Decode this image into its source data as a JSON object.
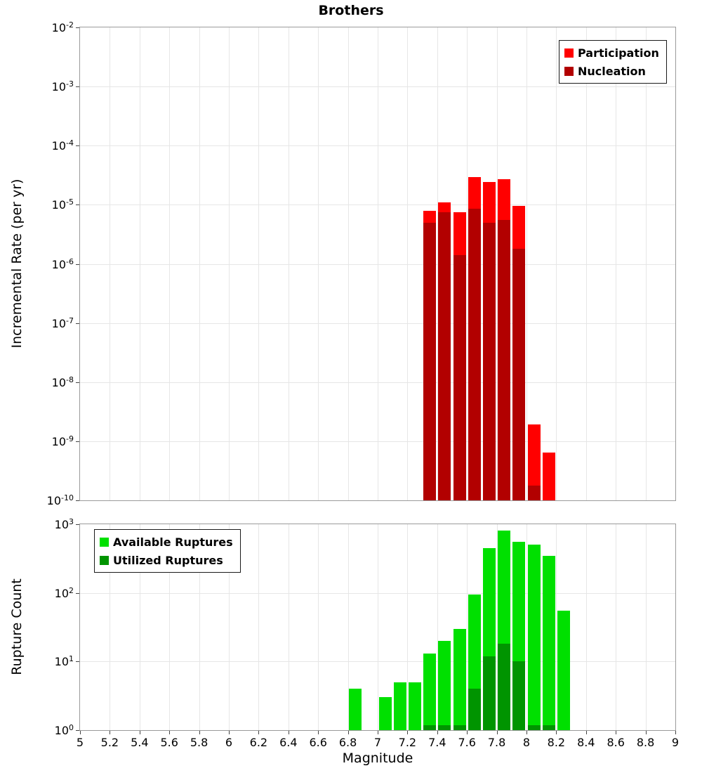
{
  "title": "Brothers",
  "chart_data": [
    {
      "type": "bar",
      "panel": "incremental-rate",
      "title": "Brothers",
      "ylabel": "Incremental Rate (per yr)",
      "yscale": "log",
      "xlim": [
        5,
        9
      ],
      "ylim": [
        1e-10,
        0.01
      ],
      "bin_width": 0.1,
      "grid": true,
      "legend_position": "top-right",
      "yticks": [
        "10^-2",
        "10^-3",
        "10^-4",
        "10^-5",
        "10^-6",
        "10^-7",
        "10^-8",
        "10^-9",
        "10^-10"
      ],
      "series": [
        {
          "name": "Participation",
          "color": "#ff0000",
          "x": [
            7.35,
            7.45,
            7.55,
            7.65,
            7.75,
            7.85,
            7.95,
            8.05,
            8.15
          ],
          "values": [
            8e-06,
            1.1e-05,
            7.5e-06,
            2.9e-05,
            2.4e-05,
            2.7e-05,
            9.5e-06,
            1.9e-09,
            6.5e-10
          ]
        },
        {
          "name": "Nucleation",
          "color": "#b20000",
          "x": [
            7.35,
            7.45,
            7.55,
            7.65,
            7.75,
            7.85,
            7.95,
            8.05,
            8.15
          ],
          "values": [
            5e-06,
            7.5e-06,
            1.4e-06,
            8.5e-06,
            5e-06,
            5.5e-06,
            1.8e-06,
            1.8e-10,
            0
          ]
        }
      ]
    },
    {
      "type": "bar",
      "panel": "rupture-count",
      "ylabel": "Rupture Count",
      "xlabel": "Magnitude",
      "yscale": "log",
      "xlim": [
        5,
        9
      ],
      "ylim": [
        1,
        1000
      ],
      "bin_width": 0.1,
      "grid": true,
      "legend_position": "top-left",
      "yticks": [
        "10^3",
        "10^2",
        "10^1",
        "10^0"
      ],
      "xticks": [
        "5",
        "5.2",
        "5.4",
        "5.6",
        "5.8",
        "6",
        "6.2",
        "6.4",
        "6.6",
        "6.8",
        "7",
        "7.2",
        "7.4",
        "7.6",
        "7.8",
        "8",
        "8.2",
        "8.4",
        "8.6",
        "8.8",
        "9"
      ],
      "series": [
        {
          "name": "Available Ruptures",
          "color": "#00e000",
          "x": [
            6.85,
            7.05,
            7.15,
            7.25,
            7.35,
            7.45,
            7.55,
            7.65,
            7.75,
            7.85,
            7.95,
            8.05,
            8.15,
            8.25
          ],
          "values": [
            4,
            3,
            5,
            5,
            13,
            20,
            30,
            95,
            450,
            800,
            550,
            500,
            350,
            55
          ]
        },
        {
          "name": "Utilized Ruptures",
          "color": "#009400",
          "x": [
            7.35,
            7.45,
            7.55,
            7.65,
            7.75,
            7.85,
            7.95,
            8.05,
            8.15
          ],
          "values": [
            1,
            1,
            1,
            4,
            12,
            18,
            10,
            1,
            1
          ]
        }
      ]
    }
  ]
}
